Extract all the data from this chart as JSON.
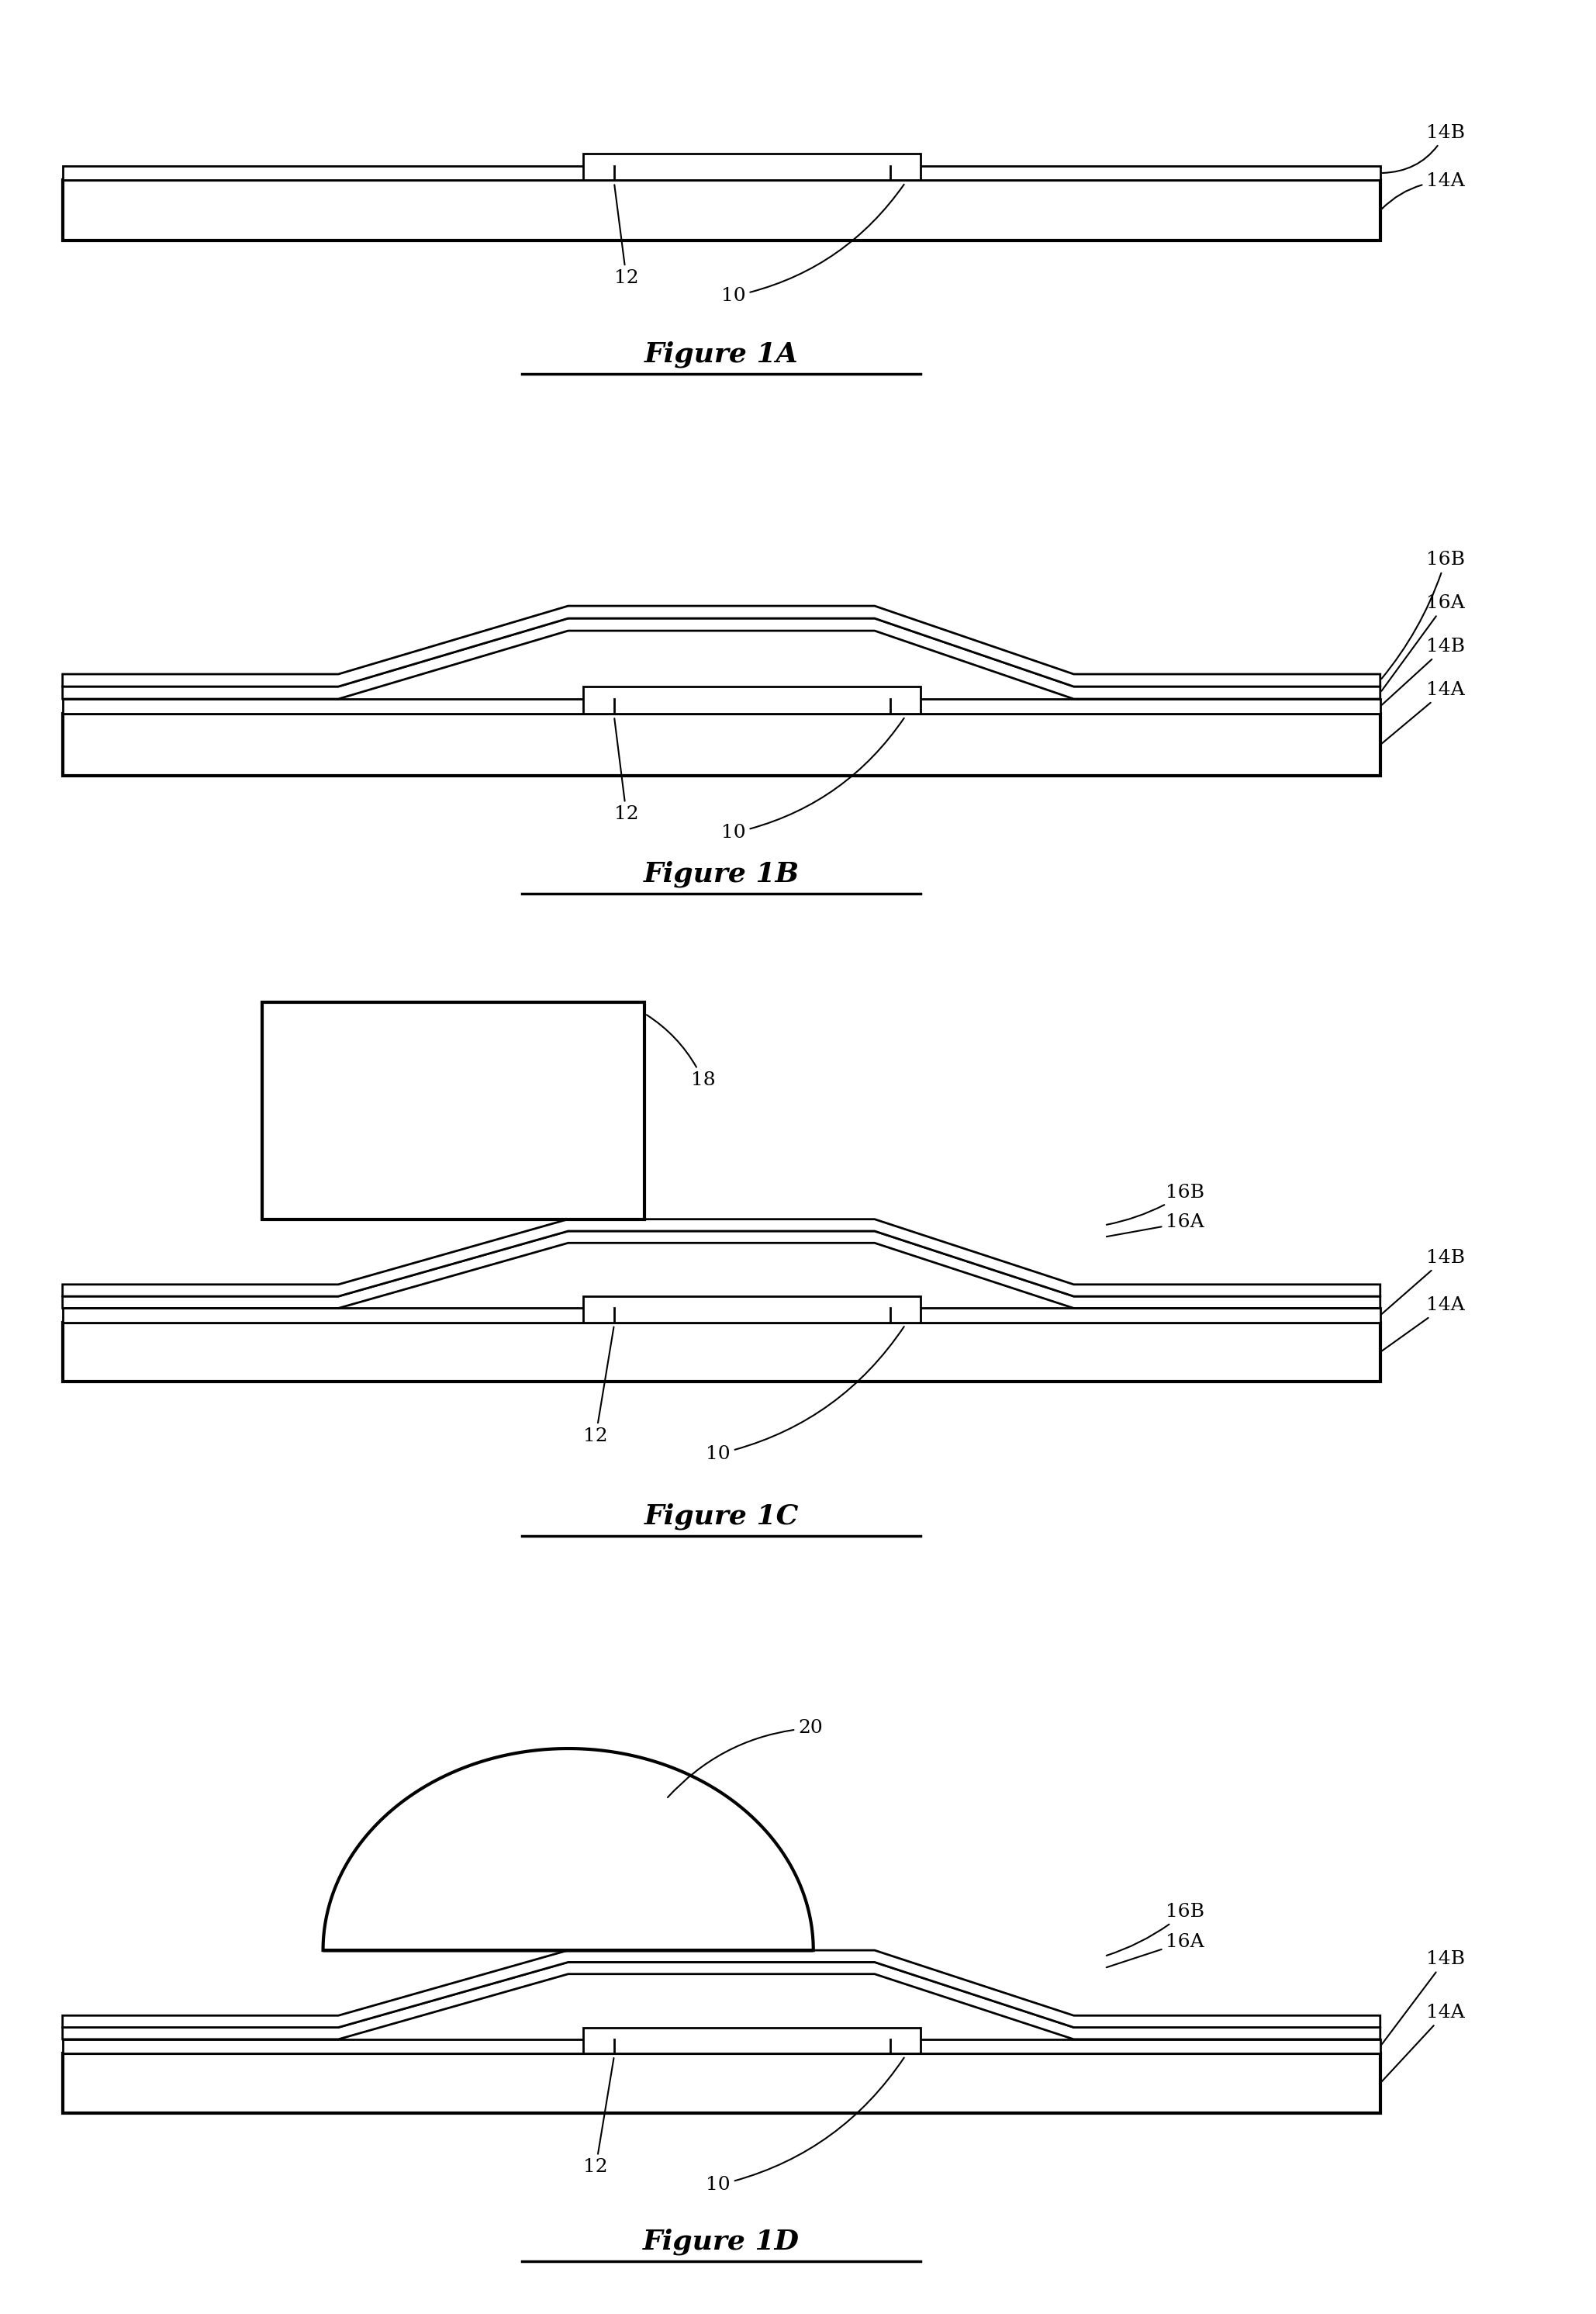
{
  "bg_color": "#ffffff",
  "line_color": "#000000",
  "lw_thin": 2.0,
  "lw_thick": 3.0,
  "fs_label": 18,
  "fs_fig": 26,
  "figures": [
    "Figure 1A",
    "Figure 1B",
    "Figure 1C",
    "Figure 1D"
  ]
}
